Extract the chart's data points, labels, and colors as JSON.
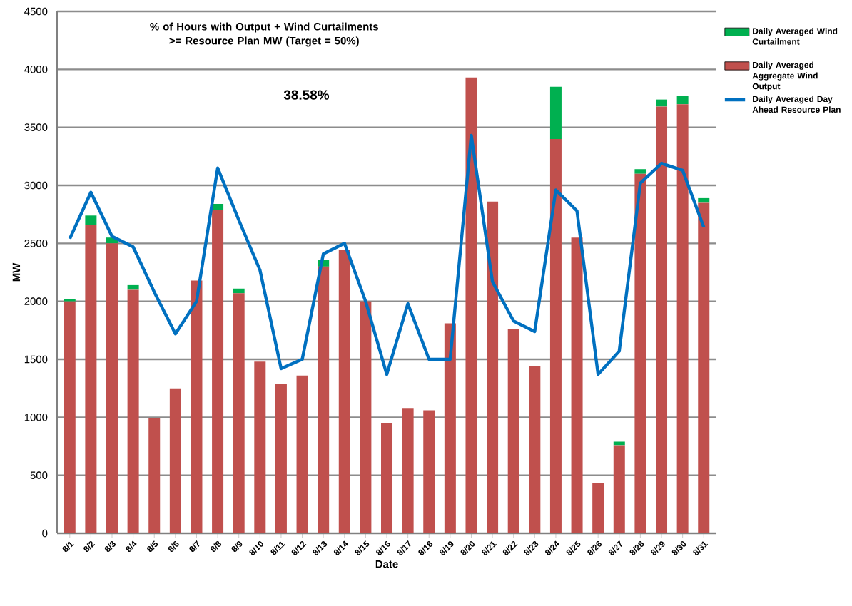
{
  "chart_data": {
    "type": "bar",
    "title": "% of Hours with Output + Wind Curtailments >= Resource Plan MW (Target = 50%)",
    "annotations": [
      "38.58%"
    ],
    "xlabel": "Date",
    "ylabel": "MW",
    "categories": [
      "8/1",
      "8/2",
      "8/3",
      "8/4",
      "8/5",
      "8/6",
      "8/7",
      "8/8",
      "8/9",
      "8/10",
      "8/11",
      "8/12",
      "8/13",
      "8/14",
      "8/15",
      "8/16",
      "8/17",
      "8/18",
      "8/19",
      "8/20",
      "8/21",
      "8/22",
      "8/23",
      "8/24",
      "8/25",
      "8/26",
      "8/27",
      "8/28",
      "8/29",
      "8/30",
      "8/31"
    ],
    "stacked": true,
    "series": [
      {
        "name": "Daily Averaged Aggregate Wind Output",
        "color": "#c0504d",
        "values": [
          2000,
          2660,
          2500,
          2100,
          990,
          1250,
          2180,
          2790,
          2070,
          1480,
          1290,
          1360,
          2300,
          2440,
          2000,
          950,
          1080,
          1060,
          1810,
          3930,
          2860,
          1760,
          1440,
          3400,
          2550,
          430,
          760,
          3100,
          3680,
          3700,
          2850
        ]
      },
      {
        "name": "Daily Averaged Wind Curtailment",
        "color": "#00b050",
        "values": [
          20,
          80,
          50,
          40,
          0,
          0,
          0,
          50,
          40,
          0,
          0,
          0,
          60,
          0,
          0,
          0,
          0,
          0,
          0,
          0,
          0,
          0,
          0,
          450,
          0,
          0,
          30,
          40,
          60,
          70,
          40
        ]
      },
      {
        "name": "Daily Averaged Day Ahead Resource Plan",
        "type": "line",
        "color": "#0070c0",
        "values": [
          2540,
          2940,
          2560,
          2470,
          2080,
          1720,
          2000,
          3150,
          2700,
          2270,
          1420,
          1500,
          2410,
          2500,
          2000,
          1370,
          1980,
          1500,
          1500,
          3430,
          2170,
          1830,
          1740,
          2960,
          2780,
          1370,
          1570,
          3020,
          3190,
          3130,
          2640
        ]
      }
    ],
    "ylim": [
      0,
      4500
    ],
    "yticks": [
      0,
      500,
      1000,
      1500,
      2000,
      2500,
      3000,
      3500,
      4000,
      4500
    ],
    "grid": "y",
    "legend": "right",
    "marker": "none",
    "line_style": "solid"
  }
}
